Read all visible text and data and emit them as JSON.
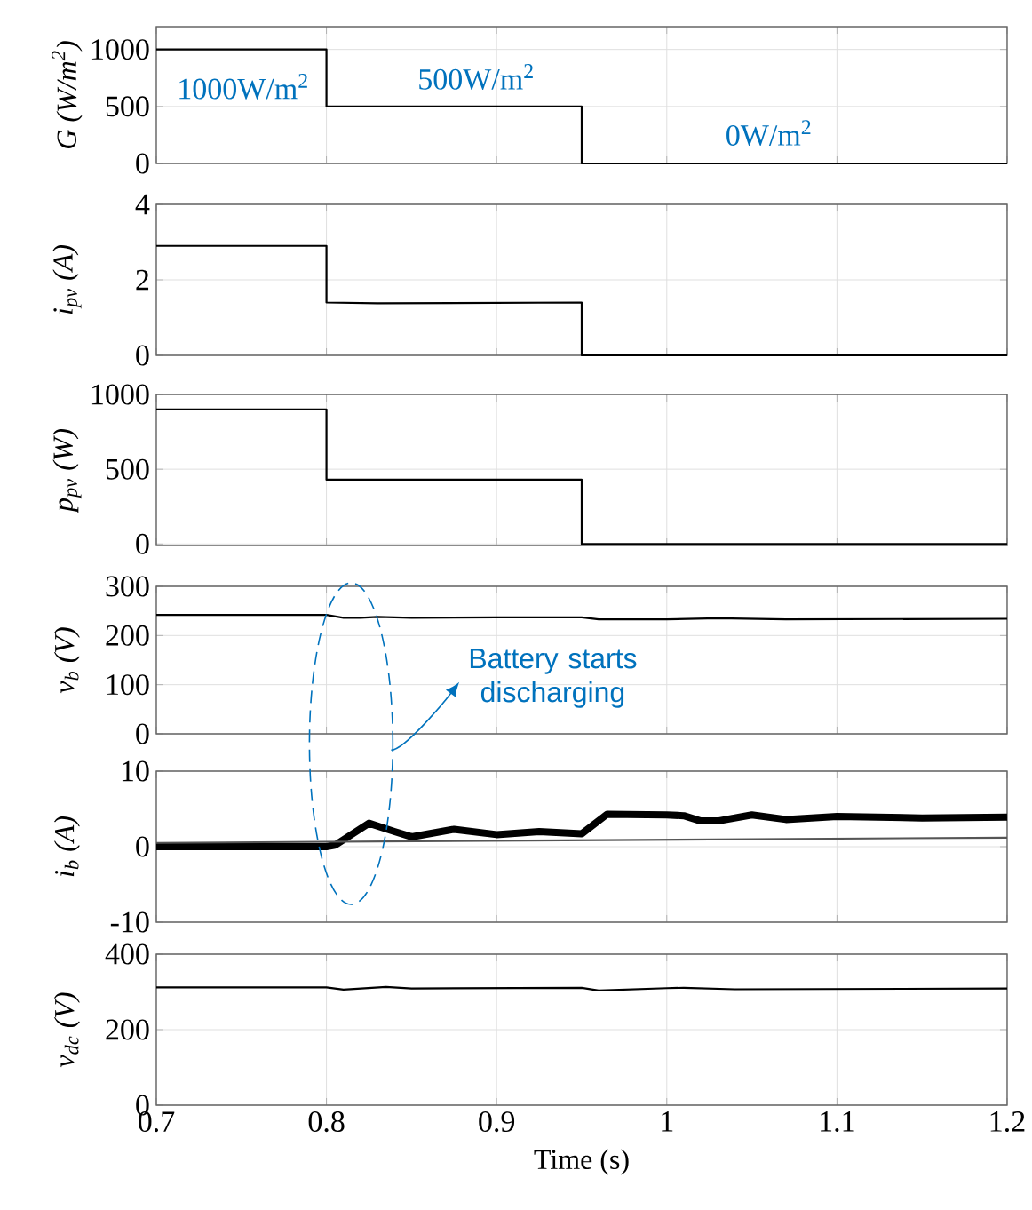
{
  "chart_data": [
    {
      "type": "line",
      "ylabel": "G (W/m$^{2}$)",
      "xlim": [
        0.7,
        1.2
      ],
      "xticks": [
        0.7,
        0.8,
        0.9,
        1,
        1.1,
        1.2
      ],
      "ylim": [
        0,
        1200
      ],
      "yticks": [
        0,
        500,
        1000
      ],
      "grid": true,
      "tick_labels": "y",
      "series": [
        {
          "color": "#000000",
          "x": [
            0.7,
            0.8,
            0.8,
            0.95,
            0.95,
            1.2
          ],
          "values": [
            1000,
            1000,
            500,
            500,
            0,
            0
          ]
        }
      ],
      "annotations": [
        "1000W/m$^{2}$",
        "500W/m$^{2}$",
        "0W/m$^{2}$"
      ]
    },
    {
      "type": "line",
      "ylabel": "i$_{pv}$ (A)",
      "xlim": [
        0.7,
        1.2
      ],
      "xticks": [
        0.7,
        0.8,
        0.9,
        1,
        1.1,
        1.2
      ],
      "ylim": [
        0,
        4
      ],
      "yticks": [
        0,
        2,
        4
      ],
      "grid": true,
      "tick_labels": "y",
      "series": [
        {
          "color": "#000000",
          "x": [
            0.7,
            0.8,
            0.8,
            0.83,
            0.95,
            0.95,
            1.2
          ],
          "values": [
            2.9,
            2.9,
            1.4,
            1.38,
            1.4,
            0,
            0
          ]
        }
      ]
    },
    {
      "type": "line",
      "ylabel": "p$_{pv}$ (W)",
      "xlim": [
        0.7,
        1.2
      ],
      "xticks": [
        0.7,
        0.8,
        0.9,
        1,
        1.1,
        1.2
      ],
      "ylim": [
        -10,
        1000
      ],
      "yticks": [
        0,
        500,
        1000
      ],
      "grid": true,
      "tick_labels": "y",
      "series": [
        {
          "color": "#000000",
          "x": [
            0.7,
            0.8,
            0.8,
            0.95,
            0.95,
            1.2
          ],
          "values": [
            900,
            900,
            430,
            430,
            0,
            0
          ]
        }
      ]
    },
    {
      "type": "line",
      "ylabel": "v$_{b}$ (V)",
      "xlim": [
        0.7,
        1.2
      ],
      "xticks": [
        0.7,
        0.8,
        0.9,
        1,
        1.1,
        1.2
      ],
      "ylim": [
        0,
        300
      ],
      "yticks": [
        0,
        100,
        200,
        300
      ],
      "grid": true,
      "tick_labels": "y",
      "series": [
        {
          "color": "#000000",
          "x": [
            0.7,
            0.8,
            0.81,
            0.82,
            0.83,
            0.85,
            0.9,
            0.95,
            0.96,
            1.0,
            1.03,
            1.07,
            1.2
          ],
          "values": [
            242,
            242,
            236,
            236,
            238,
            236,
            237,
            237,
            233,
            233,
            235,
            233,
            234
          ]
        }
      ],
      "annotations": [
        "Battery starts discharging"
      ]
    },
    {
      "type": "line",
      "ylabel": "i$_{b}$ (A)",
      "xlim": [
        0.7,
        1.2
      ],
      "xticks": [
        0.7,
        0.8,
        0.9,
        1,
        1.1,
        1.2
      ],
      "ylim": [
        -10,
        10
      ],
      "yticks": [
        -10,
        0,
        10
      ],
      "grid": true,
      "tick_labels": "y",
      "series": [
        {
          "color": "#000000",
          "x": [
            0.7,
            0.8,
            0.805,
            0.825,
            0.84,
            0.85,
            0.875,
            0.9,
            0.925,
            0.95,
            0.965,
            1.0,
            1.01,
            1.02,
            1.03,
            1.05,
            1.07,
            1.1,
            1.15,
            1.2
          ],
          "values": [
            0,
            0,
            0.2,
            3.1,
            2,
            1.3,
            2.3,
            1.6,
            2,
            1.7,
            4.3,
            4.2,
            4.1,
            3.4,
            3.4,
            4.2,
            3.6,
            4,
            3.8,
            3.9
          ]
        },
        {
          "color": "#555555",
          "x": [
            0.7,
            1.2
          ],
          "values": [
            0.5,
            1.2
          ]
        }
      ]
    },
    {
      "type": "line",
      "ylabel": "v$_{dc}$ (V)",
      "xlabel": "Time (s)",
      "xlim": [
        0.7,
        1.2
      ],
      "xticks": [
        0.7,
        0.8,
        0.9,
        1,
        1.1,
        1.2
      ],
      "ylim": [
        0,
        400
      ],
      "yticks": [
        0,
        200,
        400
      ],
      "grid": true,
      "series": [
        {
          "color": "#000000",
          "x": [
            0.7,
            0.8,
            0.81,
            0.835,
            0.85,
            0.95,
            0.96,
            1.0,
            1.01,
            1.04,
            1.2
          ],
          "values": [
            312,
            312,
            306,
            313,
            309,
            311,
            304,
            310,
            311,
            307,
            309
          ]
        }
      ]
    }
  ]
}
